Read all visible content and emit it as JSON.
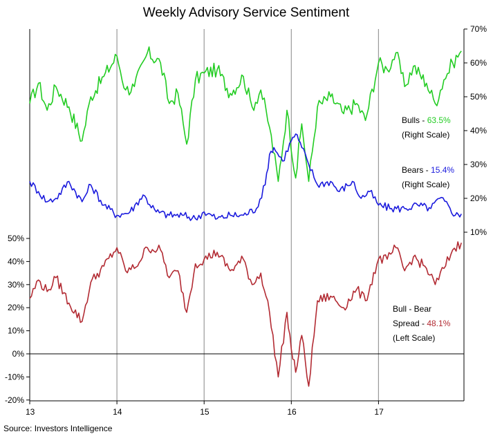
{
  "colors": {
    "bulls": "#22cc22",
    "bears": "#1a1add",
    "spread": "#b22a32",
    "grid": "#999999",
    "axis": "#000000"
  },
  "chart_data": {
    "type": "line",
    "title": "Weekly Advisory Service Sentiment",
    "source": "Source:  Investors  Intelligence",
    "x_ticks": [
      "13",
      "14",
      "15",
      "16",
      "17"
    ],
    "x_tick_values": [
      2013,
      2014,
      2015,
      2016,
      2017
    ],
    "xlim": [
      2013,
      2017.98
    ],
    "right_axis": {
      "ylim": [
        0,
        70
      ],
      "ticks": [
        "10%",
        "20%",
        "30%",
        "40%",
        "50%",
        "60%",
        "70%"
      ],
      "tick_values": [
        10,
        20,
        30,
        40,
        50,
        60,
        70
      ]
    },
    "left_axis": {
      "ylim": [
        -20,
        50
      ],
      "ticks": [
        "-20%",
        "-10%",
        "0%",
        "10%",
        "20%",
        "30%",
        "40%",
        "50%"
      ],
      "tick_values": [
        -20,
        -10,
        0,
        10,
        20,
        30,
        40,
        50
      ]
    },
    "series": [
      {
        "key": "bulls",
        "axis": "right",
        "x": [
          2013.0,
          2013.1,
          2013.2,
          2013.3,
          2013.45,
          2013.6,
          2013.7,
          2013.85,
          2014.0,
          2014.1,
          2014.2,
          2014.35,
          2014.5,
          2014.6,
          2014.7,
          2014.8,
          2014.9,
          2015.0,
          2015.15,
          2015.3,
          2015.45,
          2015.55,
          2015.65,
          2015.75,
          2015.85,
          2015.95,
          2016.05,
          2016.12,
          2016.2,
          2016.3,
          2016.45,
          2016.6,
          2016.75,
          2016.85,
          2017.0,
          2017.1,
          2017.2,
          2017.3,
          2017.4,
          2017.55,
          2017.65,
          2017.75,
          2017.85,
          2017.95
        ],
        "y": [
          48,
          54,
          46,
          53,
          47,
          37,
          50,
          56,
          62,
          52,
          53,
          63,
          60,
          48,
          51,
          36,
          55,
          57,
          58,
          51,
          56,
          47,
          52,
          41,
          25,
          46,
          26,
          42,
          25,
          47,
          50,
          45,
          48,
          43,
          60,
          58,
          63,
          53,
          59,
          54,
          48,
          55,
          60,
          63.5
        ]
      },
      {
        "key": "bears",
        "axis": "right",
        "x": [
          2013.0,
          2013.1,
          2013.2,
          2013.3,
          2013.45,
          2013.6,
          2013.7,
          2013.85,
          2014.0,
          2014.15,
          2014.3,
          2014.45,
          2014.6,
          2014.75,
          2014.9,
          2015.0,
          2015.15,
          2015.3,
          2015.45,
          2015.6,
          2015.7,
          2015.75,
          2015.8,
          2015.9,
          2016.0,
          2016.05,
          2016.12,
          2016.2,
          2016.3,
          2016.45,
          2016.55,
          2016.7,
          2016.8,
          2016.9,
          2017.0,
          2017.15,
          2017.3,
          2017.45,
          2017.6,
          2017.7,
          2017.8,
          2017.88,
          2017.95
        ],
        "y": [
          25,
          22,
          19,
          20,
          25,
          19,
          24,
          18,
          15,
          16,
          21,
          16,
          15,
          15,
          14,
          16,
          14,
          15,
          15,
          17,
          24,
          33,
          35,
          31,
          37,
          39,
          35,
          30,
          24,
          25,
          22,
          25,
          20,
          22,
          18,
          17,
          17,
          18,
          17,
          20,
          18,
          15,
          15.4
        ]
      },
      {
        "key": "spread",
        "axis": "left",
        "x": [
          2013.0,
          2013.1,
          2013.2,
          2013.3,
          2013.45,
          2013.6,
          2013.7,
          2013.85,
          2014.0,
          2014.1,
          2014.2,
          2014.35,
          2014.5,
          2014.6,
          2014.7,
          2014.8,
          2014.9,
          2015.0,
          2015.15,
          2015.3,
          2015.45,
          2015.55,
          2015.65,
          2015.75,
          2015.85,
          2015.95,
          2016.0,
          2016.05,
          2016.12,
          2016.2,
          2016.3,
          2016.45,
          2016.6,
          2016.75,
          2016.85,
          2017.0,
          2017.1,
          2017.2,
          2017.3,
          2017.4,
          2017.55,
          2017.65,
          2017.75,
          2017.85,
          2017.95
        ],
        "y": [
          24,
          32,
          27,
          33,
          22,
          14,
          31,
          38,
          46,
          36,
          37,
          46,
          45,
          33,
          36,
          18,
          39,
          41,
          44,
          36,
          41,
          30,
          35,
          18,
          -10,
          18,
          2,
          -8,
          8,
          -14,
          23,
          25,
          20,
          28,
          23,
          41,
          41,
          46,
          36,
          42,
          37,
          30,
          37,
          45,
          48.1
        ]
      }
    ],
    "annotations": [
      {
        "key": "bulls",
        "line1_label": "Bulls - ",
        "line1_value": "63.5%",
        "line2": "(Right Scale)"
      },
      {
        "key": "bears",
        "line1_label": "Bears - ",
        "line1_value": "15.4%",
        "line2": "(Right Scale)"
      },
      {
        "key": "spread",
        "line0": "Bull - Bear",
        "line1_label": "Spread - ",
        "line1_value": "48.1%",
        "line2": "(Left Scale)"
      }
    ]
  }
}
